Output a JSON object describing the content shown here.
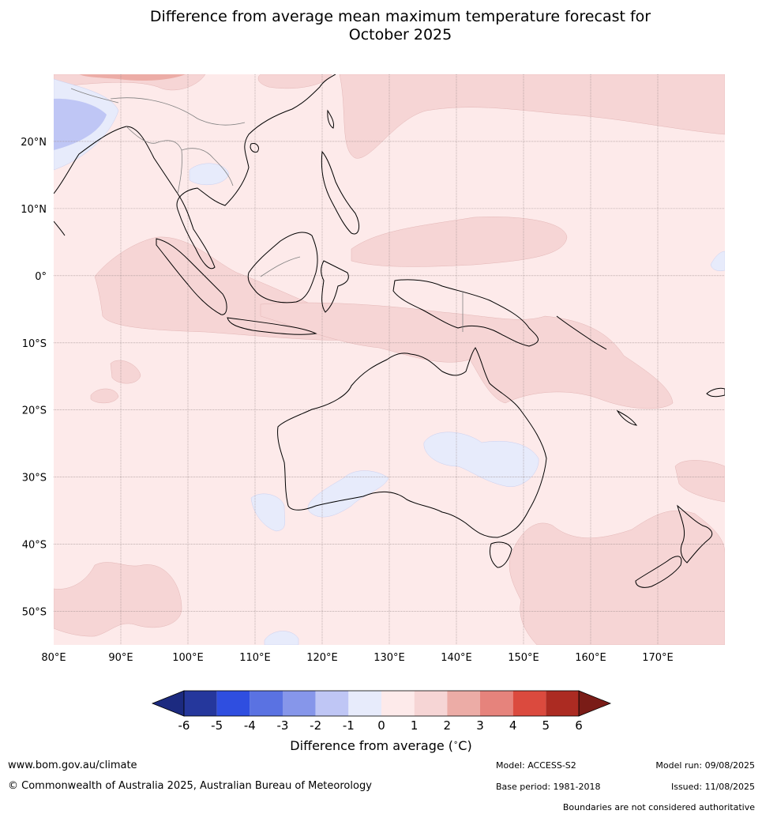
{
  "title": {
    "line1": "Difference from average mean maximum temperature forecast for",
    "line2": "October 2025"
  },
  "map": {
    "lon_range": [
      80,
      180
    ],
    "lat_range": [
      -55,
      30
    ],
    "lon_ticks": [
      "80°E",
      "90°E",
      "100°E",
      "110°E",
      "120°E",
      "130°E",
      "140°E",
      "150°E",
      "160°E",
      "170°E"
    ],
    "lat_ticks": [
      "20°N",
      "10°N",
      "0°",
      "10°S",
      "20°S",
      "30°S",
      "40°S",
      "50°S"
    ],
    "lon_tick_values": [
      80,
      90,
      100,
      110,
      120,
      130,
      140,
      150,
      160,
      170
    ],
    "lat_tick_values": [
      20,
      10,
      0,
      -10,
      -20,
      -30,
      -40,
      -50
    ],
    "gridlines": true,
    "background_category": "0 to 1",
    "regions": [
      {
        "name": "south-china-warm",
        "category": "1 to 2",
        "lon": [
          80,
          100
        ],
        "lat": [
          28,
          30
        ]
      },
      {
        "name": "tibet-cool",
        "category": "-2 to -1",
        "lon": [
          80,
          88
        ],
        "lat": [
          20,
          26
        ]
      },
      {
        "name": "west-pacific-north-warm",
        "category": "1 to 2",
        "lon": [
          125,
          180
        ],
        "lat": [
          19,
          30
        ]
      },
      {
        "name": "indian-ocean-equatorial-warm",
        "category": "1 to 2",
        "lon": [
          86,
          130
        ],
        "lat": [
          -10,
          5
        ]
      },
      {
        "name": "pacific-equatorial-warm",
        "category": "1 to 2",
        "lon": [
          130,
          158
        ],
        "lat": [
          0,
          7
        ]
      },
      {
        "name": "northern-australia-warm",
        "category": "1 to 2",
        "lon": [
          128,
          170
        ],
        "lat": [
          -20,
          -5
        ]
      },
      {
        "name": "central-australia-cool",
        "category": "-1 to 0",
        "lon": [
          136,
          150
        ],
        "lat": [
          -30,
          -22
        ]
      },
      {
        "name": "southwest-australia-cool",
        "category": "-1 to 0",
        "lon": [
          110,
          130
        ],
        "lat": [
          -37,
          -30
        ]
      },
      {
        "name": "tasman-nz-warm",
        "category": "1 to 2",
        "lon": [
          150,
          180
        ],
        "lat": [
          -55,
          -36
        ]
      },
      {
        "name": "southern-indian-warm",
        "category": "1 to 2",
        "lon": [
          80,
          100
        ],
        "lat": [
          -55,
          -45
        ]
      }
    ]
  },
  "colorbar": {
    "ticks": [
      "-6",
      "-5",
      "-4",
      "-3",
      "-2",
      "-1",
      "0",
      "1",
      "2",
      "3",
      "4",
      "5",
      "6"
    ],
    "colors": [
      "#25379c",
      "#2f4ee0",
      "#5a72e2",
      "#8696ea",
      "#bfc6f5",
      "#e7ebfb",
      "#fdeaea",
      "#f6d5d5",
      "#ecaca6",
      "#e6837c",
      "#db4a3e",
      "#ac2b22"
    ],
    "under_color": "#1c2a80",
    "over_color": "#7a1c17",
    "label": "Difference from average (",
    "label_symbol": "°C",
    "label_end": ")"
  },
  "footer": {
    "url": "www.bom.gov.au/climate",
    "copyright": "© Commonwealth of Australia 2025, Australian Bureau of Meteorology",
    "model": "Model: ACCESS-S2",
    "base_period": "Base period: 1981-2018",
    "model_run": "Model run: 09/08/2025",
    "issued": "Issued: 11/08/2025",
    "disclaimer": "Boundaries are not considered authoritative"
  }
}
